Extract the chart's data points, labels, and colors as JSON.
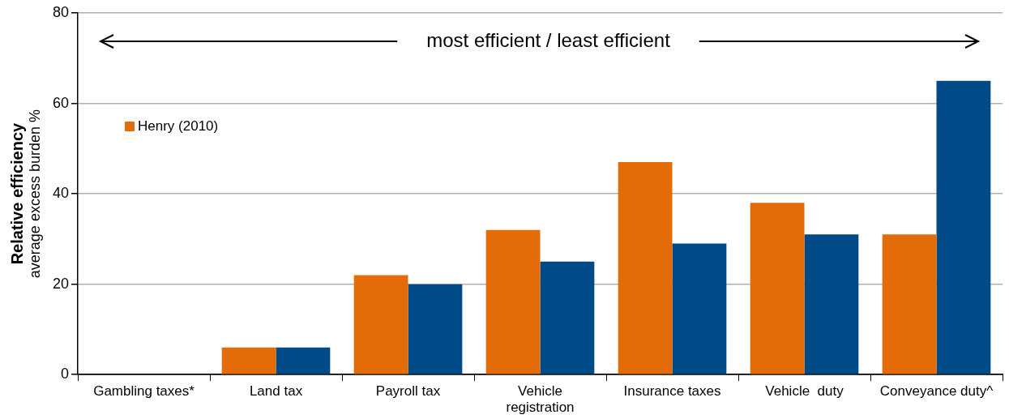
{
  "chart_data": {
    "type": "bar",
    "ylabel": "Relative efficiency\naverage excess burden %",
    "categories": [
      "Gambling taxes*",
      "Land tax",
      "Payroll tax",
      "Vehicle registration",
      "Insurance taxes",
      "Vehicle  duty",
      "Conveyance duty^"
    ],
    "series": [
      {
        "name": "Henry (2010)",
        "color": "#e36c09",
        "values": [
          null,
          6,
          22,
          32,
          47,
          38,
          31
        ]
      },
      {
        "color": "#004b87",
        "values": [
          null,
          6,
          20,
          25,
          29,
          31,
          65
        ]
      }
    ],
    "ylim": [
      0,
      80
    ],
    "yticks": [
      0,
      20,
      40,
      60,
      80
    ],
    "grid": "y",
    "legend": "top left",
    "annotations": [
      "most efficient / least efficient"
    ]
  }
}
